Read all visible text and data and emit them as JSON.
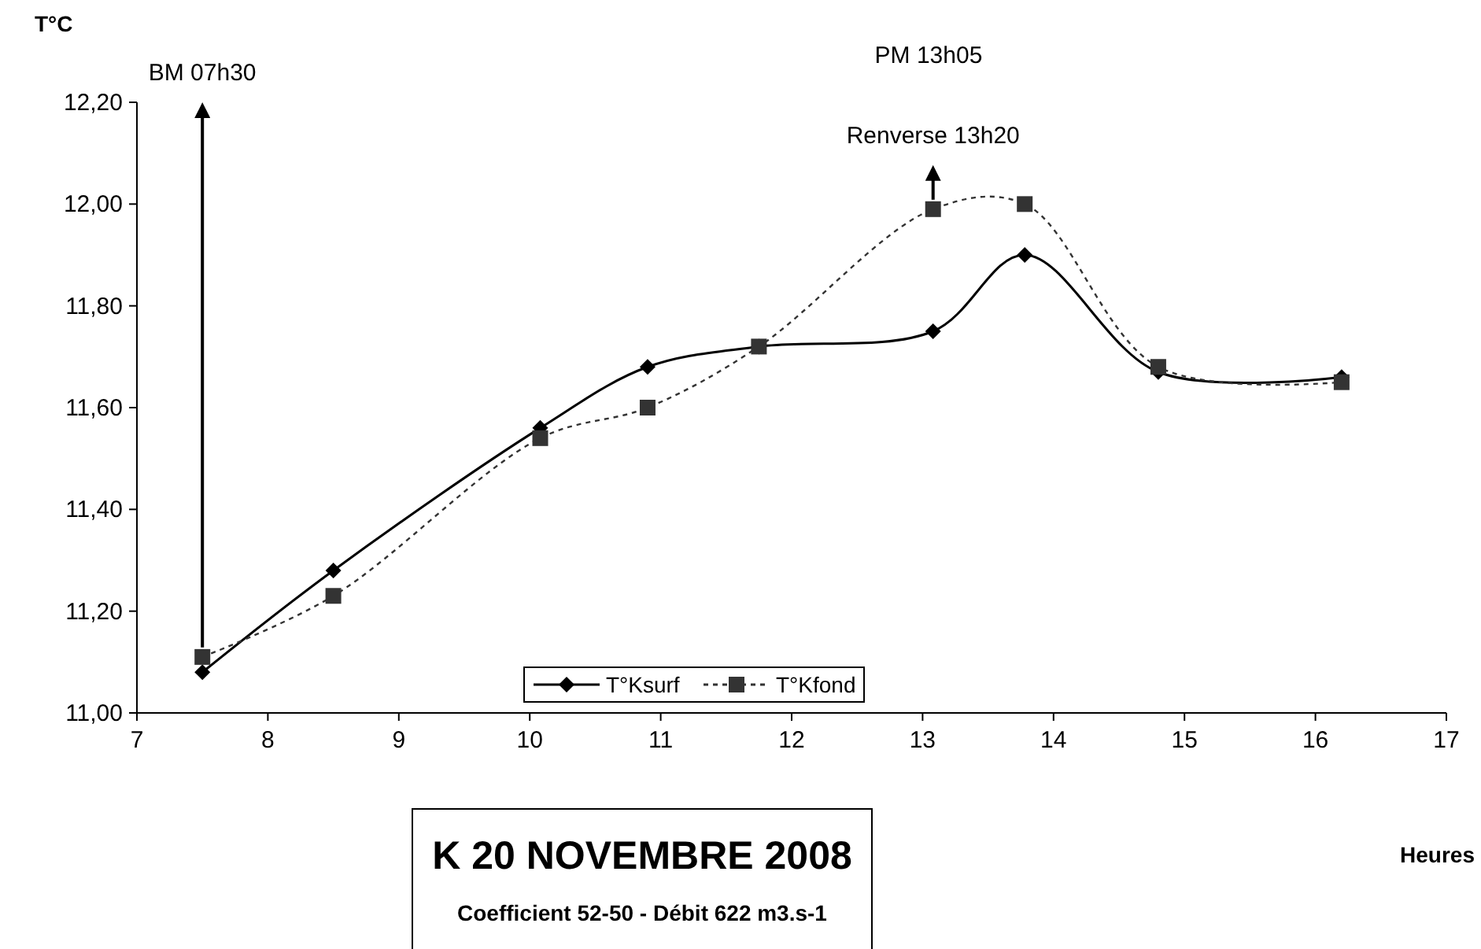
{
  "chart_data": {
    "type": "line",
    "title": "K 20 NOVEMBRE 2008",
    "subtitle": "Coefficient 52-50 - Débit 622 m3.s-1",
    "xlabel": "Heures",
    "ylabel": "T°C",
    "x": [
      7.5,
      8.5,
      10.08,
      10.9,
      11.75,
      13.08,
      13.78,
      14.8,
      16.2
    ],
    "series": [
      {
        "name": "T°Ksurf",
        "color": "#000000",
        "marker": "diamond",
        "line_style": "solid",
        "values": [
          11.08,
          11.28,
          11.56,
          11.68,
          11.72,
          11.75,
          11.9,
          11.67,
          11.66
        ]
      },
      {
        "name": "T°Kfond",
        "color": "#333333",
        "marker": "square",
        "line_style": "dashed",
        "values": [
          11.11,
          11.23,
          11.54,
          11.6,
          11.72,
          11.99,
          12.0,
          11.68,
          11.65
        ]
      }
    ],
    "xlim": [
      7,
      17
    ],
    "xticks": [
      7,
      8,
      9,
      10,
      11,
      12,
      13,
      14,
      15,
      16,
      17
    ],
    "ylim": [
      11,
      12.2
    ],
    "yticks": [
      {
        "value": 11,
        "label": "11,00"
      },
      {
        "value": 11.2,
        "label": "11,20"
      },
      {
        "value": 11.4,
        "label": "11,40"
      },
      {
        "value": 11.6,
        "label": "11,60"
      },
      {
        "value": 11.8,
        "label": "11,80"
      },
      {
        "value": 12,
        "label": "12,00"
      },
      {
        "value": 12.2,
        "label": "12,20"
      }
    ],
    "annotations": [
      "PM 13h05"
    ],
    "ref_lines": [
      {
        "axis": "x",
        "value": 7.5,
        "label": "BM 07h30",
        "color": "#000000"
      },
      {
        "axis": "x",
        "value": 13.08,
        "label": "Renverse 13h20",
        "color": "#000000"
      }
    ],
    "legend": "bottom",
    "grid": false
  }
}
